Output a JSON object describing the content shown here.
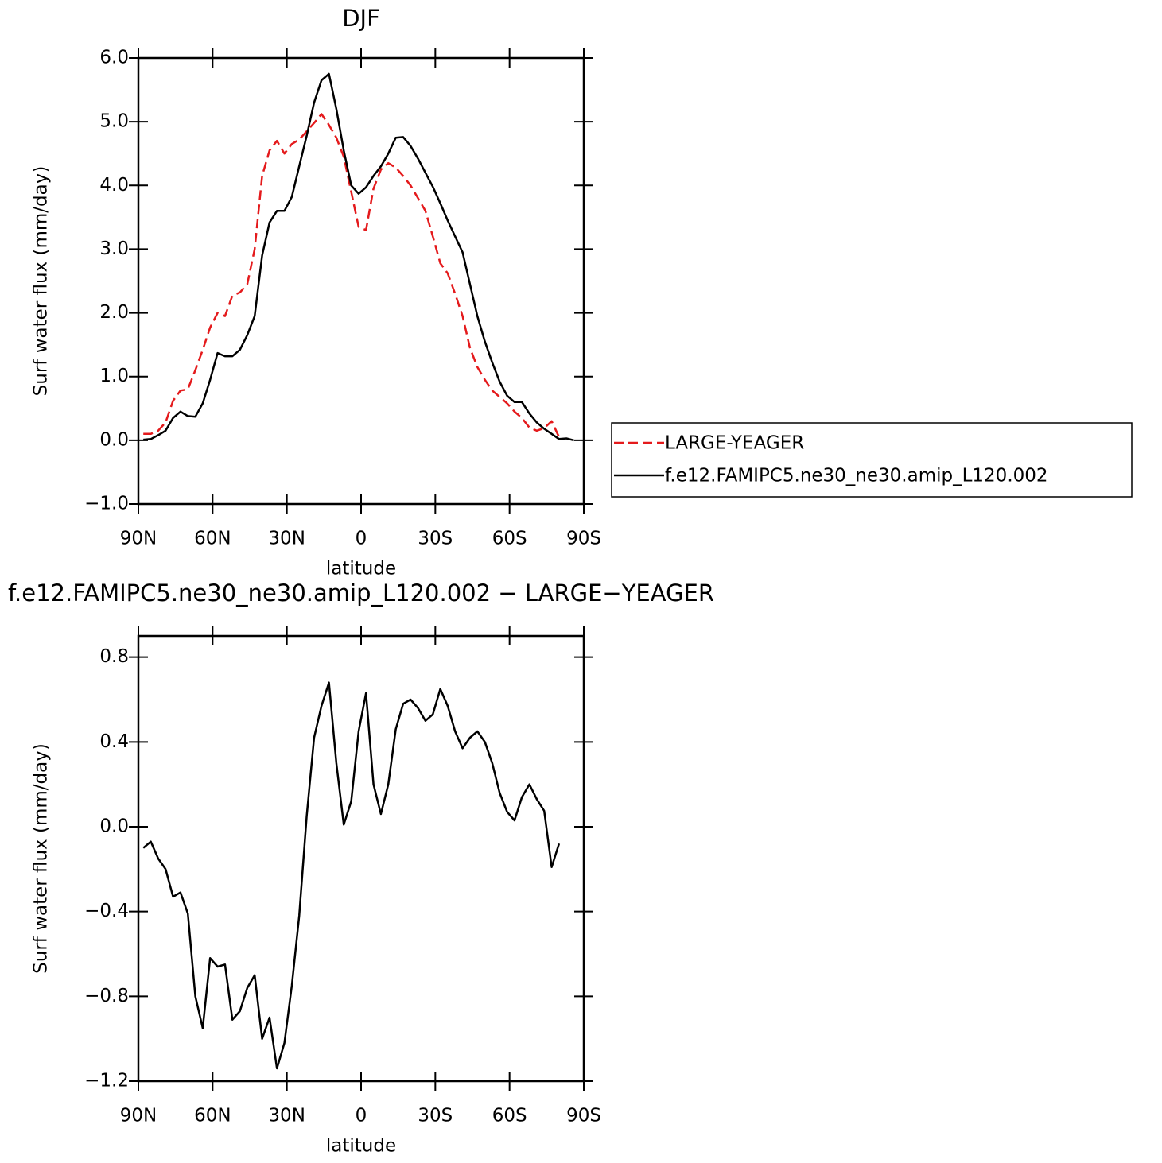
{
  "chart_data": [
    {
      "type": "line",
      "title": "DJF",
      "xlabel": "latitude",
      "ylabel": "Surf water flux (mm/day)",
      "x": [
        88,
        85,
        82,
        79,
        76,
        73,
        70,
        67,
        64,
        61,
        58,
        55,
        52,
        49,
        46,
        43,
        40,
        37,
        34,
        31,
        28,
        25,
        22,
        19,
        16,
        13,
        10,
        7,
        4,
        1,
        -2,
        -5,
        -8,
        -11,
        -14,
        -17,
        -20,
        -23,
        -26,
        -29,
        -32,
        -35,
        -38,
        -41,
        -44,
        -47,
        -50,
        -53,
        -56,
        -59,
        -62,
        -65,
        -68,
        -71,
        -74,
        -77,
        -80,
        -83,
        -86
      ],
      "series": [
        {
          "name": "LARGE-YEAGER",
          "color": "#e41a1c",
          "linestyle": "dashed",
          "values": [
            0.1,
            0.1,
            0.15,
            0.28,
            0.62,
            0.78,
            0.8,
            1.1,
            1.42,
            1.77,
            2.0,
            1.95,
            2.27,
            2.32,
            2.45,
            3.0,
            4.15,
            4.55,
            4.7,
            4.5,
            4.65,
            4.72,
            4.85,
            4.98,
            5.12,
            4.95,
            4.75,
            4.45,
            3.9,
            3.35,
            3.3,
            3.95,
            4.25,
            4.35,
            4.28,
            4.15,
            4.0,
            3.8,
            3.6,
            3.2,
            2.78,
            2.62,
            2.3,
            1.95,
            1.45,
            1.15,
            0.95,
            0.78,
            0.68,
            0.58,
            0.45,
            0.35,
            0.2,
            0.15,
            0.19,
            0.3,
            0.05,
            null,
            null
          ]
        },
        {
          "name": "f.e12.FAMIPC5.ne30_ne30.amip_L120.002",
          "color": "#000000",
          "linestyle": "solid",
          "values": [
            0.01,
            0.02,
            0.08,
            0.15,
            0.35,
            0.45,
            0.38,
            0.37,
            0.58,
            0.95,
            1.37,
            1.32,
            1.32,
            1.42,
            1.65,
            1.95,
            2.9,
            3.42,
            3.6,
            3.6,
            3.82,
            4.3,
            4.78,
            5.3,
            5.65,
            5.75,
            5.2,
            4.55,
            4.0,
            3.87,
            3.97,
            4.15,
            4.3,
            4.5,
            4.75,
            4.76,
            4.62,
            4.42,
            4.2,
            3.98,
            3.72,
            3.45,
            3.2,
            2.95,
            2.45,
            1.95,
            1.55,
            1.22,
            0.92,
            0.7,
            0.6,
            0.6,
            0.42,
            0.28,
            0.18,
            0.1,
            0.02,
            0.03,
            0.0
          ]
        }
      ],
      "xlim": [
        90,
        -90
      ],
      "xticks": [
        {
          "value": 90,
          "label": "90N"
        },
        {
          "value": 60,
          "label": "60N"
        },
        {
          "value": 30,
          "label": "30N"
        },
        0,
        {
          "value": -30,
          "label": "30S"
        },
        {
          "value": -60,
          "label": "60S"
        },
        {
          "value": -90,
          "label": "90S"
        }
      ],
      "ylim": [
        -1.0,
        6.0
      ],
      "yticks": [
        {
          "value": -1.0,
          "label": "−1.0"
        },
        {
          "value": 0.0,
          "label": "0.0"
        },
        {
          "value": 1.0,
          "label": "1.0"
        },
        {
          "value": 2.0,
          "label": "2.0"
        },
        {
          "value": 3.0,
          "label": "3.0"
        },
        {
          "value": 4.0,
          "label": "4.0"
        },
        {
          "value": 5.0,
          "label": "5.0"
        },
        {
          "value": 6.0,
          "label": "6.0"
        }
      ],
      "legend": "right"
    },
    {
      "type": "line",
      "title": "f.e12.FAMIPC5.ne30_ne30.amip_L120.002 − LARGE−YEAGER",
      "xlabel": "latitude",
      "ylabel": "Surf water flux (mm/day)",
      "x": [
        88,
        85,
        82,
        79,
        76,
        73,
        70,
        67,
        64,
        61,
        58,
        55,
        52,
        49,
        46,
        43,
        40,
        37,
        34,
        31,
        28,
        25,
        22,
        19,
        16,
        13,
        10,
        7,
        4,
        1,
        -2,
        -5,
        -8,
        -11,
        -14,
        -17,
        -20,
        -23,
        -26,
        -29,
        -32,
        -35,
        -38,
        -41,
        -44,
        -47,
        -50,
        -53,
        -56,
        -59,
        -62,
        -65,
        -68,
        -71,
        -74,
        -77,
        -80
      ],
      "values": [
        -0.1,
        -0.07,
        -0.15,
        -0.2,
        -0.33,
        -0.31,
        -0.41,
        -0.8,
        -0.95,
        -0.62,
        -0.66,
        -0.65,
        -0.91,
        -0.87,
        -0.76,
        -0.7,
        -1.0,
        -0.9,
        -1.14,
        -1.02,
        -0.75,
        -0.42,
        0.05,
        0.42,
        0.57,
        0.68,
        0.3,
        0.01,
        0.12,
        0.45,
        0.63,
        0.2,
        0.06,
        0.2,
        0.46,
        0.58,
        0.6,
        0.56,
        0.5,
        0.53,
        0.65,
        0.57,
        0.45,
        0.37,
        0.42,
        0.45,
        0.4,
        0.3,
        0.16,
        0.07,
        0.03,
        0.14,
        0.2,
        0.13,
        0.075,
        -0.19,
        -0.08
      ],
      "color": "#000000",
      "xlim": [
        90,
        -90
      ],
      "xticks": [
        {
          "value": 90,
          "label": "90N"
        },
        {
          "value": 60,
          "label": "60N"
        },
        {
          "value": 30,
          "label": "30N"
        },
        0,
        {
          "value": -30,
          "label": "30S"
        },
        {
          "value": -60,
          "label": "60S"
        },
        {
          "value": -90,
          "label": "90S"
        }
      ],
      "ylim": [
        -1.2,
        0.9
      ],
      "yticks": [
        {
          "value": -1.2,
          "label": "−1.2"
        },
        {
          "value": -0.8,
          "label": "−0.8"
        },
        {
          "value": -0.4,
          "label": "−0.4"
        },
        {
          "value": 0.0,
          "label": "0.0"
        },
        0.4,
        0.8
      ]
    }
  ]
}
